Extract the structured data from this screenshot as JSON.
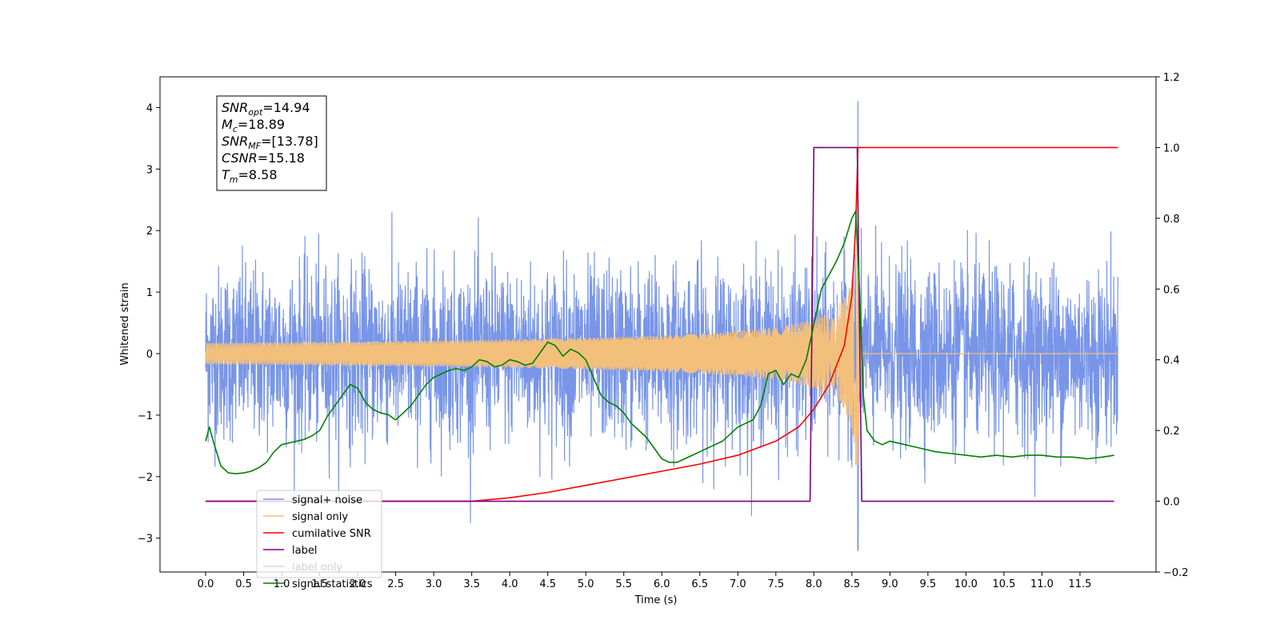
{
  "chart_data": {
    "type": "line",
    "xlabel": "Time (s)",
    "ylabel_left": "Whitened strain",
    "xlim": [
      -0.6,
      12.5
    ],
    "ylim_left": [
      -3.55,
      4.5
    ],
    "ylim_right": [
      -0.2,
      1.2
    ],
    "x_ticks": [
      "0.0",
      "0.5",
      "1.0",
      "1.5",
      "2.0",
      "2.5",
      "3.0",
      "3.5",
      "4.0",
      "4.5",
      "5.0",
      "5.5",
      "6.0",
      "6.5",
      "7.0",
      "7.5",
      "8.0",
      "8.5",
      "9.0",
      "9.5",
      "10.0",
      "10.5",
      "11.0",
      "11.5"
    ],
    "y_ticks_left": [
      "−3",
      "−2",
      "−1",
      "0",
      "1",
      "2",
      "3",
      "4"
    ],
    "y_ticks_right": [
      "−0.2",
      "0.0",
      "0.2",
      "0.4",
      "0.6",
      "0.8",
      "1.0",
      "1.2"
    ],
    "grid": false,
    "legend_position": "lower-left",
    "annotation": {
      "lines": [
        {
          "base": "SNR",
          "sub": "opt",
          "value": "=14.94"
        },
        {
          "base": "M",
          "sub": "c",
          "value": "=18.89"
        },
        {
          "base": "SNR",
          "sub": "MF",
          "value": "=[13.78]"
        },
        {
          "base": "CSNR",
          "sub": "",
          "value": "=15.18"
        },
        {
          "base": "T",
          "sub": "m",
          "value": "=8.58"
        }
      ]
    },
    "series": [
      {
        "name": "signal+ noise",
        "color": "#7895e8",
        "axis": "left",
        "kind": "noise",
        "x_range": [
          0.0,
          12.0
        ],
        "std": 0.7,
        "peak": {
          "x": 8.58,
          "max": 4.1,
          "min": -3.2
        }
      },
      {
        "name": "signal only",
        "color": "#f3c07c",
        "axis": "left",
        "kind": "chirp",
        "x_range": [
          0.0,
          12.0
        ],
        "merger_time": 8.58,
        "peak_amplitude": 2.6
      },
      {
        "name": "cumilative SNR",
        "color": "#ff0000",
        "axis": "right",
        "x": [
          0.0,
          3.0,
          3.5,
          4.0,
          4.5,
          5.0,
          5.5,
          6.0,
          6.5,
          7.0,
          7.5,
          7.8,
          8.0,
          8.2,
          8.4,
          8.5,
          8.55,
          8.58,
          12.0
        ],
        "values": [
          0.0,
          0.0,
          0.0,
          0.01,
          0.025,
          0.045,
          0.065,
          0.085,
          0.105,
          0.13,
          0.17,
          0.21,
          0.26,
          0.33,
          0.44,
          0.58,
          0.78,
          1.0,
          1.0
        ]
      },
      {
        "name": "label",
        "color": "#800080",
        "axis": "right",
        "x": [
          0.0,
          7.95,
          8.0,
          8.57,
          8.63,
          11.95
        ],
        "values": [
          0.0,
          0.0,
          1.0,
          1.0,
          0.0,
          0.0
        ]
      },
      {
        "name": "label only",
        "color": "#d8d8d8",
        "axis": "right",
        "hidden": true,
        "x": [],
        "values": []
      },
      {
        "name": "signal statistics",
        "color": "#008000",
        "axis": "right",
        "x": [
          0.0,
          0.05,
          0.1,
          0.2,
          0.3,
          0.4,
          0.5,
          0.6,
          0.7,
          0.8,
          0.9,
          1.0,
          1.1,
          1.2,
          1.3,
          1.4,
          1.5,
          1.6,
          1.7,
          1.8,
          1.9,
          2.0,
          2.1,
          2.2,
          2.3,
          2.4,
          2.5,
          2.6,
          2.7,
          2.8,
          2.9,
          3.0,
          3.1,
          3.2,
          3.3,
          3.4,
          3.5,
          3.6,
          3.7,
          3.8,
          3.9,
          4.0,
          4.1,
          4.2,
          4.3,
          4.4,
          4.5,
          4.6,
          4.7,
          4.8,
          4.9,
          5.0,
          5.1,
          5.2,
          5.3,
          5.4,
          5.5,
          5.6,
          5.7,
          5.8,
          5.9,
          6.0,
          6.1,
          6.2,
          6.3,
          6.4,
          6.5,
          6.6,
          6.7,
          6.8,
          6.9,
          7.0,
          7.1,
          7.2,
          7.3,
          7.4,
          7.5,
          7.6,
          7.7,
          7.8,
          7.9,
          8.0,
          8.1,
          8.2,
          8.3,
          8.4,
          8.5,
          8.55,
          8.6,
          8.65,
          8.7,
          8.8,
          8.9,
          9.0,
          9.2,
          9.4,
          9.6,
          9.8,
          10.0,
          10.2,
          10.4,
          10.6,
          10.8,
          11.0,
          11.2,
          11.4,
          11.6,
          11.8,
          11.95
        ],
        "values": [
          0.17,
          0.21,
          0.17,
          0.1,
          0.08,
          0.078,
          0.08,
          0.085,
          0.095,
          0.11,
          0.14,
          0.16,
          0.165,
          0.17,
          0.175,
          0.185,
          0.2,
          0.24,
          0.27,
          0.3,
          0.33,
          0.32,
          0.28,
          0.26,
          0.25,
          0.245,
          0.23,
          0.25,
          0.27,
          0.3,
          0.33,
          0.35,
          0.36,
          0.37,
          0.375,
          0.37,
          0.38,
          0.4,
          0.395,
          0.38,
          0.385,
          0.4,
          0.395,
          0.385,
          0.39,
          0.42,
          0.45,
          0.44,
          0.41,
          0.43,
          0.42,
          0.4,
          0.35,
          0.3,
          0.28,
          0.27,
          0.25,
          0.22,
          0.2,
          0.18,
          0.15,
          0.12,
          0.11,
          0.11,
          0.12,
          0.13,
          0.14,
          0.15,
          0.16,
          0.17,
          0.19,
          0.21,
          0.22,
          0.23,
          0.27,
          0.36,
          0.37,
          0.33,
          0.36,
          0.35,
          0.4,
          0.5,
          0.6,
          0.64,
          0.68,
          0.73,
          0.8,
          0.82,
          0.6,
          0.3,
          0.2,
          0.17,
          0.16,
          0.17,
          0.16,
          0.15,
          0.14,
          0.135,
          0.13,
          0.125,
          0.13,
          0.125,
          0.13,
          0.13,
          0.125,
          0.125,
          0.12,
          0.125,
          0.13
        ]
      }
    ]
  }
}
